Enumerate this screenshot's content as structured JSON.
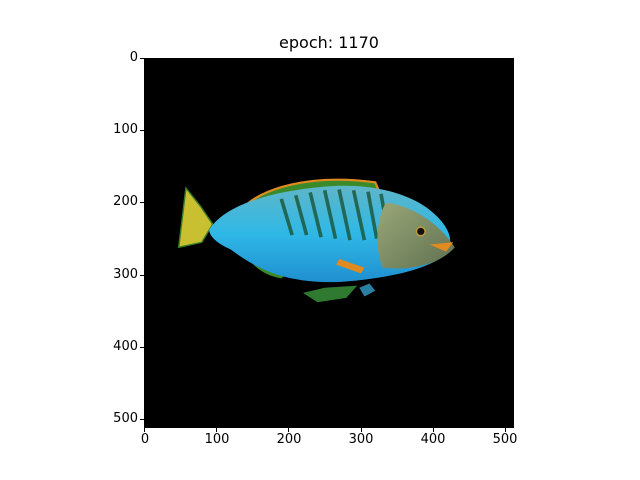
{
  "figure": {
    "title": "epoch: 1170",
    "image_subject": "fish",
    "colors": {
      "background": "#000000",
      "body_cyan": "#2fb8e6",
      "body_light": "#7fe0f0",
      "head_olive": "#8a9a6a",
      "fin_green": "#3a8a2a",
      "fin_orange": "#e08a20",
      "tail_yellow": "#c8c030"
    }
  },
  "axes": {
    "y_ticks": [
      "0",
      "100",
      "200",
      "300",
      "400",
      "500"
    ],
    "x_ticks": [
      "0",
      "100",
      "200",
      "300",
      "400",
      "500"
    ],
    "y_tick_values": [
      0,
      100,
      200,
      300,
      400,
      500
    ],
    "x_tick_values": [
      0,
      100,
      200,
      300,
      400,
      500
    ],
    "range": [
      0,
      512
    ]
  }
}
